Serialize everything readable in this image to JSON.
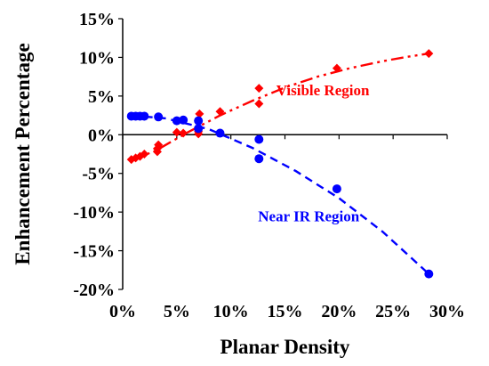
{
  "chart_data": {
    "type": "scatter",
    "xlabel": "Planar Density",
    "ylabel": "Enhancement  Percentage",
    "xlim": [
      0,
      30
    ],
    "ylim": [
      -20,
      15
    ],
    "xticks": [
      0,
      5,
      10,
      15,
      20,
      25,
      30
    ],
    "yticks": [
      -20,
      -15,
      -10,
      -5,
      0,
      5,
      10,
      15
    ],
    "xtick_labels": [
      "0%",
      "5%",
      "10%",
      "15%",
      "20%",
      "25%",
      "30%"
    ],
    "ytick_labels": [
      "-20%",
      "-15%",
      "-10%",
      "-5%",
      "0%",
      "5%",
      "10%",
      "15%"
    ],
    "grid": false,
    "series": [
      {
        "name": "Visible Region",
        "color": "#ff0000",
        "marker": "diamond",
        "line_style": "dash-dot-dot",
        "points": [
          [
            0.8,
            -3.2
          ],
          [
            1.2,
            -3.0
          ],
          [
            1.6,
            -2.8
          ],
          [
            2.0,
            -2.5
          ],
          [
            3.2,
            -2.2
          ],
          [
            3.2,
            -1.8
          ],
          [
            3.3,
            -1.3
          ],
          [
            5.0,
            0.3
          ],
          [
            5.6,
            0.2
          ],
          [
            7.0,
            0.1
          ],
          [
            7.0,
            0.4
          ],
          [
            7.1,
            2.7
          ],
          [
            9.0,
            3.0
          ],
          [
            12.6,
            4.0
          ],
          [
            12.6,
            6.0
          ],
          [
            19.8,
            8.6
          ],
          [
            28.3,
            10.5
          ]
        ],
        "trend": [
          [
            0.8,
            -3.3
          ],
          [
            3,
            -2.1
          ],
          [
            6,
            0.3
          ],
          [
            9,
            2.5
          ],
          [
            12,
            4.4
          ],
          [
            15,
            6.1
          ],
          [
            18,
            7.5
          ],
          [
            21,
            8.6
          ],
          [
            24,
            9.5
          ],
          [
            26,
            10.0
          ],
          [
            28.3,
            10.5
          ]
        ]
      },
      {
        "name": "Near IR Region",
        "color": "#0000ff",
        "marker": "circle",
        "line_style": "dash",
        "points": [
          [
            0.8,
            2.4
          ],
          [
            1.2,
            2.4
          ],
          [
            1.6,
            2.4
          ],
          [
            2.0,
            2.4
          ],
          [
            3.3,
            2.3
          ],
          [
            5.0,
            1.8
          ],
          [
            5.6,
            1.9
          ],
          [
            7.0,
            1.8
          ],
          [
            7.0,
            0.8
          ],
          [
            9.0,
            0.2
          ],
          [
            12.6,
            -0.6
          ],
          [
            12.6,
            -3.1
          ],
          [
            19.8,
            -7.0
          ],
          [
            28.3,
            -18.0
          ]
        ],
        "trend": [
          [
            0.8,
            2.5
          ],
          [
            4,
            2.1
          ],
          [
            8,
            0.7
          ],
          [
            12,
            -1.7
          ],
          [
            16,
            -4.7
          ],
          [
            20,
            -8.2
          ],
          [
            24,
            -12.5
          ],
          [
            28.3,
            -18.0
          ]
        ]
      }
    ],
    "annotations": [
      {
        "text": "Visible Region",
        "x": 18.5,
        "y": 5.8,
        "color": "#ff0000"
      },
      {
        "text": "Near IR Region",
        "x": 17.2,
        "y": -10.5,
        "color": "#0000ff"
      }
    ]
  }
}
